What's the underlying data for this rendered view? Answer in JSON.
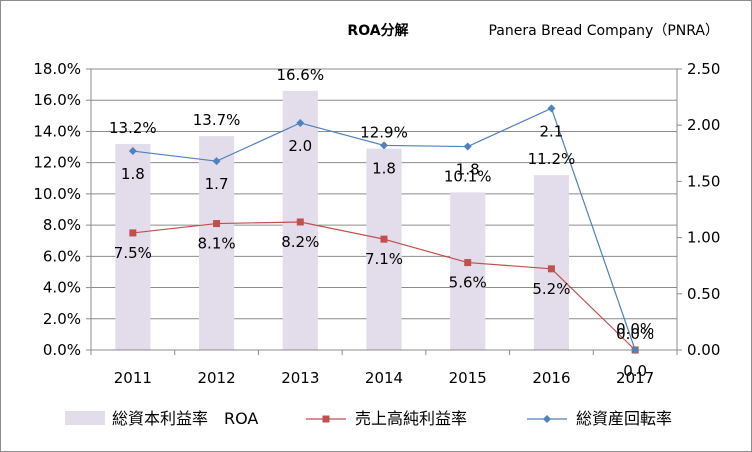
{
  "chart_data": {
    "type": "bar",
    "title": "ROA分解",
    "subtitle": "Panera Bread Company（PNRA）",
    "categories": [
      "2011",
      "2012",
      "2013",
      "2014",
      "2015",
      "2016",
      "2017"
    ],
    "y_left": {
      "lim": [
        0,
        18
      ],
      "ticks": [
        "0.0%",
        "2.0%",
        "4.0%",
        "6.0%",
        "8.0%",
        "10.0%",
        "12.0%",
        "14.0%",
        "16.0%",
        "18.0%"
      ]
    },
    "y_right": {
      "lim": [
        0,
        2.5
      ],
      "ticks": [
        "0.00",
        "0.50",
        "1.00",
        "1.50",
        "2.00",
        "2.50"
      ]
    },
    "grid": true,
    "legend_position": "bottom",
    "series": [
      {
        "name": "総資本利益率　ROA",
        "type": "bar",
        "axis": "left",
        "color": "#e3dcea",
        "values": [
          13.2,
          13.7,
          16.6,
          12.9,
          10.1,
          11.2,
          0.0
        ],
        "labels": [
          "13.2%",
          "13.7%",
          "16.6%",
          "12.9%",
          "10.1%",
          "11.2%",
          "0.0%"
        ]
      },
      {
        "name": "売上高純利益率",
        "type": "line",
        "axis": "left",
        "color": "#c0504d",
        "values": [
          7.5,
          8.1,
          8.2,
          7.1,
          5.6,
          5.2,
          0.0
        ],
        "labels": [
          "7.5%",
          "8.1%",
          "8.2%",
          "7.1%",
          "5.6%",
          "5.2%",
          "0.0%"
        ]
      },
      {
        "name": "総資産回転率",
        "type": "line",
        "axis": "right",
        "color": "#4f81bd",
        "values": [
          1.77,
          1.68,
          2.02,
          1.82,
          1.81,
          2.15,
          0.0
        ],
        "labels": [
          "1.8",
          "1.7",
          "2.0",
          "1.8",
          "1.8",
          "2.1",
          "0.0"
        ]
      }
    ]
  }
}
